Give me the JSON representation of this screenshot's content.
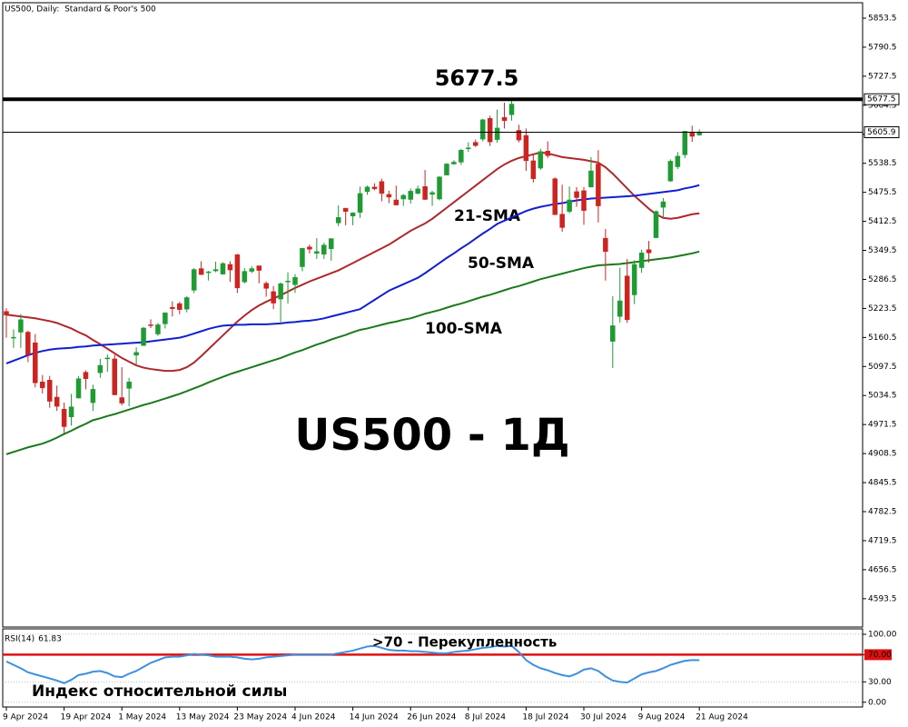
{
  "chart_data": [
    {
      "type": "candlestick",
      "title": "US500, Daily:  Standard & Poor's 500",
      "watermark": "US500 - 1Д",
      "categories": [
        "9 Apr 2024",
        null,
        null,
        null,
        null,
        null,
        null,
        null,
        "19 Apr 2024",
        null,
        null,
        null,
        null,
        null,
        null,
        null,
        "1 May 2024",
        null,
        null,
        null,
        null,
        null,
        null,
        null,
        "13 May 2024",
        null,
        null,
        null,
        null,
        null,
        null,
        null,
        "23 May 2024",
        null,
        null,
        null,
        null,
        null,
        null,
        null,
        "4 Jun 2024",
        null,
        null,
        null,
        null,
        null,
        null,
        null,
        "14 Jun 2024",
        null,
        null,
        null,
        null,
        null,
        null,
        null,
        "26 Jun 2024",
        null,
        null,
        null,
        null,
        null,
        null,
        null,
        "8 Jul 2024",
        null,
        null,
        null,
        null,
        null,
        null,
        null,
        "18 Jul 2024",
        null,
        null,
        null,
        null,
        null,
        null,
        null,
        "30 Jul 2024",
        null,
        null,
        null,
        null,
        null,
        null,
        null,
        "9 Aug 2024",
        null,
        null,
        null,
        null,
        null,
        null,
        null,
        "21 Aug 2024"
      ],
      "open": [
        5217,
        5160,
        5172,
        5172,
        5149,
        5064,
        5068,
        5031,
        5005,
        4988,
        5029,
        5085,
        5019,
        5084,
        5114,
        5114,
        5030,
        5050,
        5122,
        5143,
        5188,
        5168,
        5190,
        5226,
        5234,
        5222,
        5263,
        5310,
        5303,
        5305,
        5298,
        5319,
        5340,
        5281,
        5304,
        5316,
        5278,
        5260,
        5244,
        5283,
        5275,
        5314,
        5357,
        5343,
        5341,
        5353,
        5409,
        5441,
        5424,
        5432,
        5477,
        5487,
        5499,
        5471,
        5459,
        5461,
        5460,
        5473,
        5488,
        5471,
        5461,
        5513,
        5537,
        5541,
        5572,
        5584,
        5591,
        5636,
        5590,
        5638,
        5644,
        5610,
        5599,
        5544,
        5528,
        5565,
        5505,
        5428,
        5434,
        5477,
        5479,
        5487,
        5537,
        5376,
        5152,
        5206,
        5294,
        5253,
        5312,
        5351,
        5377,
        5443,
        5500,
        5531,
        5557,
        5606,
        5600
      ],
      "high": [
        5224,
        5178,
        5211,
        5175,
        5168,
        5079,
        5077,
        5056,
        5019,
        5038,
        5076,
        5089,
        5058,
        5114,
        5124,
        5123,
        5096,
        5073,
        5139,
        5183,
        5200,
        5192,
        5215,
        5239,
        5238,
        5250,
        5311,
        5326,
        5305,
        5325,
        5324,
        5326,
        5342,
        5311,
        5315,
        5316,
        5282,
        5272,
        5280,
        5302,
        5298,
        5355,
        5362,
        5376,
        5366,
        5376,
        5447,
        5442,
        5432,
        5488,
        5490,
        5495,
        5505,
        5479,
        5490,
        5472,
        5484,
        5490,
        5524,
        5479,
        5510,
        5539,
        5545,
        5570,
        5584,
        5590,
        5635,
        5642,
        5655,
        5670,
        5677.5,
        5622,
        5614,
        5557,
        5570,
        5586,
        5508,
        5492,
        5488,
        5487,
        5487,
        5552,
        5567,
        5396,
        5250,
        5312,
        5331,
        5328,
        5351,
        5370,
        5436,
        5463,
        5547,
        5563,
        5608,
        5620,
        5612
      ],
      "low": [
        5160,
        5138,
        5138,
        5107,
        5052,
        5039,
        5008,
        5001,
        4953,
        4969,
        5028,
        5048,
        5001,
        5073,
        5086,
        5035,
        5013,
        5011,
        5101,
        5142,
        5181,
        5164,
        5180,
        5206,
        5211,
        5215,
        5257,
        5296,
        5284,
        5302,
        5297,
        5281,
        5257,
        5278,
        5300,
        5278,
        5249,
        5222,
        5191,
        5234,
        5257,
        5304,
        5343,
        5331,
        5331,
        5327,
        5402,
        5404,
        5404,
        5420,
        5470,
        5480,
        5456,
        5452,
        5447,
        5446,
        5451,
        5471,
        5459,
        5446,
        5458,
        5513,
        5535,
        5535,
        5563,
        5574,
        5586,
        5576,
        5583,
        5614,
        5631,
        5584,
        5522,
        5497,
        5524,
        5550,
        5426,
        5390,
        5430,
        5444,
        5405,
        5486,
        5410,
        5284,
        5094,
        5193,
        5192,
        5233,
        5301,
        5323,
        5376,
        5420,
        5498,
        5526,
        5550,
        5585,
        5598
      ],
      "close": [
        5209,
        5161,
        5199,
        5123,
        5062,
        5051,
        5022,
        5011,
        4967,
        5010,
        5071,
        5071,
        5048,
        5100,
        5116,
        5036,
        5018,
        5064,
        5128,
        5181,
        5187,
        5188,
        5214,
        5223,
        5221,
        5247,
        5308,
        5297,
        5303,
        5308,
        5321,
        5307,
        5268,
        5304,
        5310,
        5306,
        5267,
        5235,
        5277,
        5283,
        5291,
        5354,
        5352,
        5347,
        5361,
        5375,
        5421,
        5434,
        5431,
        5473,
        5487,
        5483,
        5473,
        5465,
        5448,
        5469,
        5478,
        5483,
        5460,
        5475,
        5509,
        5537,
        5541,
        5567,
        5572,
        5577,
        5633,
        5585,
        5615,
        5631,
        5667,
        5589,
        5544,
        5505,
        5564,
        5555,
        5427,
        5399,
        5459,
        5464,
        5436,
        5522,
        5446,
        5347,
        5186,
        5240,
        5199,
        5319,
        5344,
        5344,
        5434,
        5455,
        5543,
        5554,
        5608,
        5597,
        5605.9
      ],
      "up_color": "#1e9b32",
      "down_color": "#cc2420",
      "series": [
        {
          "name": "21-SMA",
          "color": "#b0272a",
          "values": [
            5210,
            5208,
            5206,
            5204,
            5202,
            5199,
            5196,
            5192,
            5186,
            5180,
            5172,
            5165,
            5155,
            5146,
            5136,
            5126,
            5116,
            5108,
            5100,
            5095,
            5092,
            5090,
            5088,
            5088,
            5090,
            5096,
            5106,
            5120,
            5135,
            5150,
            5165,
            5180,
            5195,
            5208,
            5220,
            5230,
            5238,
            5245,
            5252,
            5260,
            5268,
            5275,
            5282,
            5288,
            5294,
            5300,
            5306,
            5314,
            5322,
            5330,
            5338,
            5346,
            5354,
            5362,
            5372,
            5382,
            5392,
            5400,
            5408,
            5418,
            5430,
            5442,
            5454,
            5466,
            5478,
            5490,
            5502,
            5514,
            5526,
            5536,
            5544,
            5550,
            5554,
            5558,
            5562,
            5560,
            5556,
            5552,
            5550,
            5548,
            5546,
            5543,
            5540,
            5530,
            5516,
            5500,
            5484,
            5468,
            5454,
            5440,
            5428,
            5420,
            5418,
            5420,
            5424,
            5428,
            5430
          ]
        },
        {
          "name": "50-SMA",
          "color": "#1020d0",
          "values": [
            5104,
            5110,
            5116,
            5122,
            5127,
            5131,
            5134,
            5136,
            5137,
            5138,
            5140,
            5141,
            5143,
            5144,
            5145,
            5146,
            5147,
            5148,
            5149,
            5150,
            5152,
            5154,
            5156,
            5158,
            5160,
            5164,
            5169,
            5174,
            5179,
            5183,
            5186,
            5187,
            5188,
            5188,
            5189,
            5189,
            5189,
            5190,
            5191,
            5193,
            5194,
            5196,
            5197,
            5199,
            5202,
            5206,
            5210,
            5214,
            5218,
            5222,
            5232,
            5242,
            5252,
            5262,
            5269,
            5276,
            5283,
            5290,
            5300,
            5311,
            5322,
            5333,
            5343,
            5354,
            5364,
            5375,
            5386,
            5396,
            5407,
            5414,
            5421,
            5428,
            5435,
            5440,
            5444,
            5447,
            5450,
            5452,
            5455,
            5458,
            5460,
            5462,
            5463,
            5464,
            5465,
            5466,
            5467,
            5468,
            5470,
            5472,
            5474,
            5476,
            5478,
            5480,
            5484,
            5487,
            5491
          ]
        },
        {
          "name": "100-SMA",
          "color": "#1a7a1a",
          "values": [
            4907,
            4912,
            4917,
            4922,
            4926,
            4930,
            4936,
            4943,
            4951,
            4958,
            4966,
            4973,
            4981,
            4985,
            4990,
            4994,
            4999,
            5004,
            5009,
            5014,
            5018,
            5023,
            5028,
            5033,
            5038,
            5044,
            5050,
            5056,
            5063,
            5069,
            5075,
            5081,
            5086,
            5091,
            5096,
            5101,
            5106,
            5111,
            5116,
            5122,
            5128,
            5133,
            5139,
            5145,
            5150,
            5156,
            5161,
            5166,
            5172,
            5177,
            5180,
            5184,
            5188,
            5192,
            5195,
            5199,
            5202,
            5207,
            5212,
            5216,
            5220,
            5225,
            5230,
            5234,
            5239,
            5244,
            5249,
            5253,
            5258,
            5263,
            5268,
            5272,
            5277,
            5282,
            5287,
            5291,
            5295,
            5299,
            5303,
            5307,
            5311,
            5314,
            5317,
            5318,
            5319,
            5320,
            5322,
            5324,
            5326,
            5328,
            5330,
            5332,
            5334,
            5337,
            5340,
            5343,
            5347
          ]
        }
      ],
      "resistance": 5677.5,
      "last_price": 5605.9,
      "ylim": [
        4532,
        5887
      ],
      "yticks": [
        5853.5,
        5790.5,
        5727.5,
        5664.5,
        5601.5,
        5538.5,
        5475.5,
        5412.5,
        5349.5,
        5286.5,
        5223.5,
        5160.5,
        5097.5,
        5034.5,
        4971.5,
        4908.5,
        4845.5,
        4782.5,
        4719.5,
        4656.5,
        4593.5
      ]
    },
    {
      "type": "line",
      "title": "RSI(14)",
      "name": "Индекс относительной силы",
      "color": "#3d8fe0",
      "values": [
        60,
        55,
        50,
        44,
        41,
        38,
        35,
        32,
        28,
        33,
        40,
        42,
        45,
        46,
        43,
        38,
        37,
        42,
        46,
        52,
        58,
        62,
        66,
        67,
        67,
        69,
        71,
        70,
        69,
        67,
        67,
        67,
        66,
        64,
        63,
        64,
        66,
        67,
        68,
        69,
        70,
        70,
        70,
        70,
        70,
        70,
        72,
        74,
        76,
        79,
        82,
        83,
        80,
        77,
        76,
        76,
        75,
        75,
        74,
        73,
        72,
        72,
        74,
        75,
        76,
        78,
        80,
        81,
        83,
        82,
        83,
        74,
        62,
        55,
        50,
        47,
        43,
        40,
        38,
        42,
        48,
        50,
        46,
        38,
        32,
        30,
        29,
        35,
        41,
        44,
        46,
        50,
        55,
        58,
        61,
        62,
        61.83
      ],
      "level": 70,
      "level_color": "#e01010",
      "level_note": ">70 - Перекупленность",
      "ylim": [
        -7,
        108
      ],
      "yticks": [
        {
          "value": 100,
          "label": "100.00"
        },
        {
          "value": 70,
          "label": "70.00"
        },
        {
          "value": 30,
          "label": "30.00"
        },
        {
          "value": 0,
          "label": "0.00"
        }
      ]
    }
  ]
}
